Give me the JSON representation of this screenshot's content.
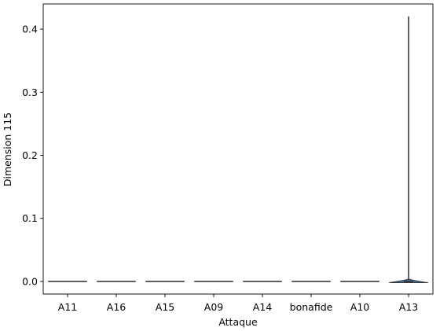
{
  "chart_data": {
    "type": "violin",
    "xlabel": "Attaque",
    "ylabel": "Dimension 115",
    "ylim": [
      -0.02,
      0.44
    ],
    "yticks": [
      0.0,
      0.1,
      0.2,
      0.3,
      0.4
    ],
    "ytick_labels": [
      "0.0",
      "0.1",
      "0.2",
      "0.3",
      "0.4"
    ],
    "categories": [
      "A11",
      "A16",
      "A15",
      "A09",
      "A14",
      "bonafide",
      "A10",
      "A13"
    ],
    "series": [
      {
        "category": "A11",
        "min": 0.0,
        "max": 0.0,
        "median": 0.0
      },
      {
        "category": "A16",
        "min": 0.0,
        "max": 0.0,
        "median": 0.0
      },
      {
        "category": "A15",
        "min": 0.0,
        "max": 0.0,
        "median": 0.0
      },
      {
        "category": "A09",
        "min": 0.0,
        "max": 0.0,
        "median": 0.0
      },
      {
        "category": "A14",
        "min": 0.0,
        "max": 0.0,
        "median": 0.0
      },
      {
        "category": "bonafide",
        "min": 0.0,
        "max": 0.0,
        "median": 0.0
      },
      {
        "category": "A10",
        "min": 0.0,
        "max": 0.0,
        "median": 0.0
      },
      {
        "category": "A13",
        "min": -0.002,
        "max": 0.42,
        "median": 0.0
      }
    ],
    "colors": {
      "violin_fill": "#3b75af",
      "stroke": "#3a3a3a"
    },
    "grid": false,
    "legend": "none"
  }
}
